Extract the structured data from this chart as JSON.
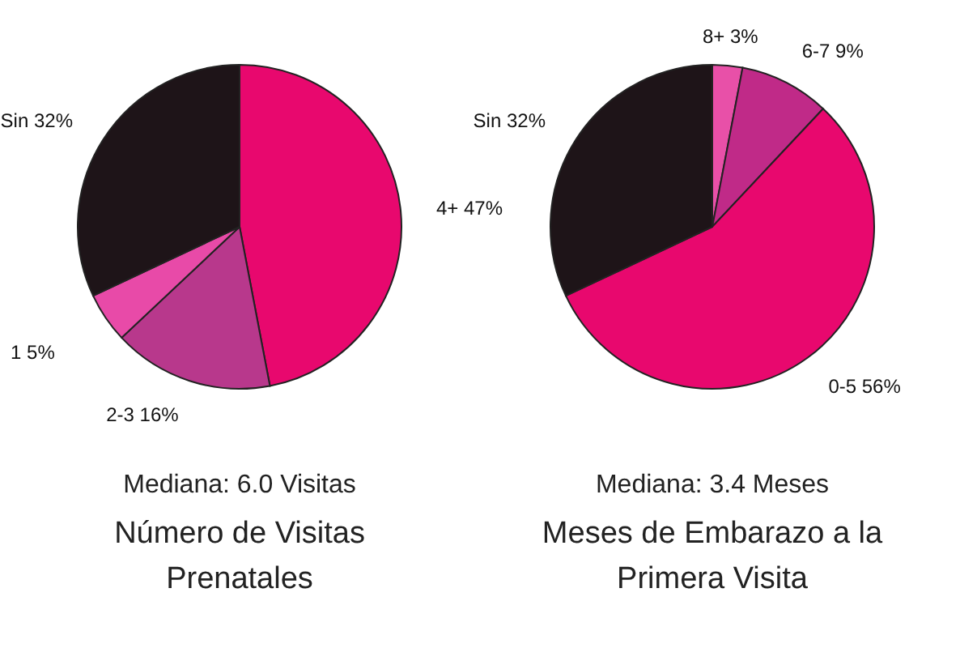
{
  "chart_data": [
    {
      "type": "pie",
      "title": "Número de Visitas Prenatales",
      "subtitle": "Mediana: 6.0 Visitas",
      "categories": [
        "4+",
        "2-3",
        "1",
        "Sin"
      ],
      "values": [
        47,
        16,
        5,
        32
      ],
      "value_labels": [
        "47%",
        "16%",
        "5%",
        "32%"
      ],
      "colors": [
        "#e8086e",
        "#b8388c",
        "#e84aa8",
        "#1e1418"
      ]
    },
    {
      "type": "pie",
      "title": "Meses de Embarazo a la Primera Visita",
      "subtitle": "Mediana: 3.4 Meses",
      "categories": [
        "8+",
        "6-7",
        "0-5",
        "Sin"
      ],
      "values": [
        3,
        9,
        56,
        32
      ],
      "value_labels": [
        "3%",
        "9%",
        "56%",
        "32%"
      ],
      "colors": [
        "#e850a8",
        "#c02a88",
        "#e8086e",
        "#1e1418"
      ]
    }
  ]
}
